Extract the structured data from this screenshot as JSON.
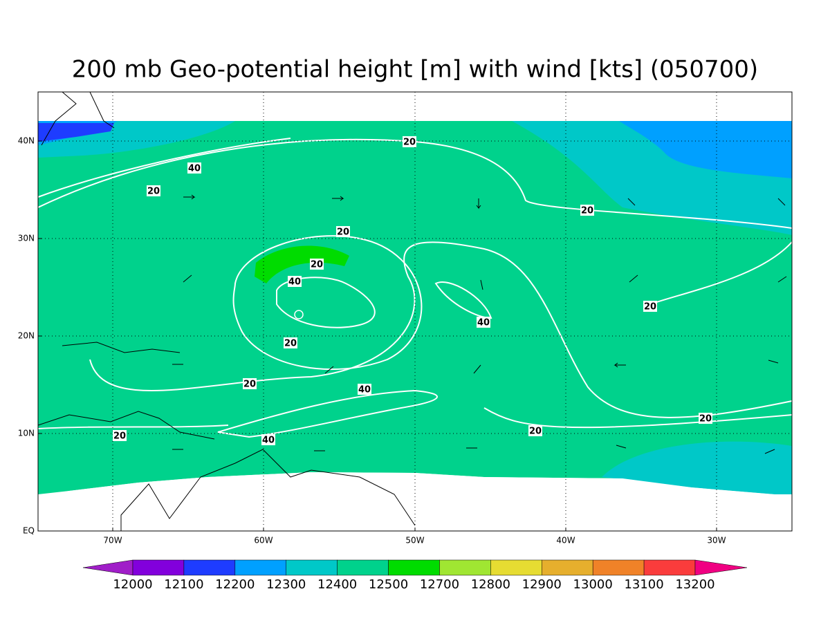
{
  "title": "200 mb Geo-potential height [m] with wind [kts] (050700)",
  "lat_labels": [
    "EQ",
    "10N",
    "20N",
    "30N",
    "40N"
  ],
  "lon_labels": [
    "70W",
    "60W",
    "50W",
    "40W",
    "30W"
  ],
  "contour_labels": [
    20,
    40,
    20,
    20,
    20,
    20,
    40,
    40,
    20,
    20,
    20,
    40,
    20,
    20,
    20,
    40
  ],
  "colorbar": {
    "labels": [
      12000,
      12100,
      12200,
      12300,
      12400,
      12500,
      12700,
      12800,
      12900,
      13000,
      13100,
      13200
    ],
    "colors": [
      "#a01ec8",
      "#8200dc",
      "#1e3cff",
      "#00a0ff",
      "#00c8c8",
      "#00d28c",
      "#00dc00",
      "#a0e632",
      "#e6dc32",
      "#e6af2d",
      "#f08228",
      "#fa3c3c",
      "#f00082"
    ]
  }
}
